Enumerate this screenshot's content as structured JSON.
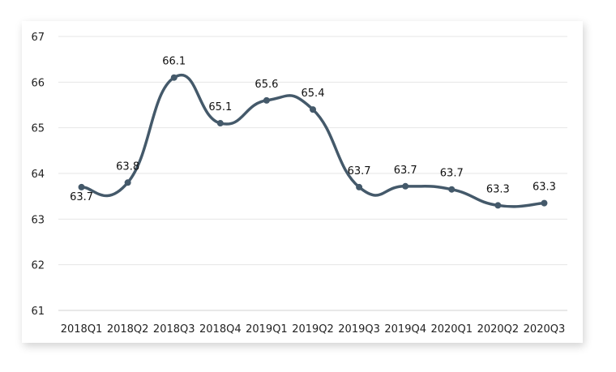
{
  "chart_data": {
    "type": "line",
    "title": "",
    "xlabel": "",
    "ylabel": "",
    "ylim": [
      61,
      67
    ],
    "yticks": [
      61,
      62,
      63,
      64,
      65,
      66,
      67
    ],
    "grid": true,
    "smooth": true,
    "color": "#44596a",
    "categories": [
      "2018Q1",
      "2018Q2",
      "2018Q3",
      "2018Q4",
      "2019Q1",
      "2019Q2",
      "2019Q3",
      "2019Q4",
      "2020Q1",
      "2020Q2",
      "2020Q3"
    ],
    "values": [
      63.7,
      63.8,
      66.1,
      65.1,
      65.6,
      65.4,
      63.7,
      63.72,
      63.65,
      63.3,
      63.35
    ],
    "data_labels": [
      "63.7",
      "63.8",
      "66.1",
      "65.1",
      "65.6",
      "65.4",
      "63.7",
      "63.7",
      "63.7",
      "63.3",
      "63.3"
    ]
  }
}
